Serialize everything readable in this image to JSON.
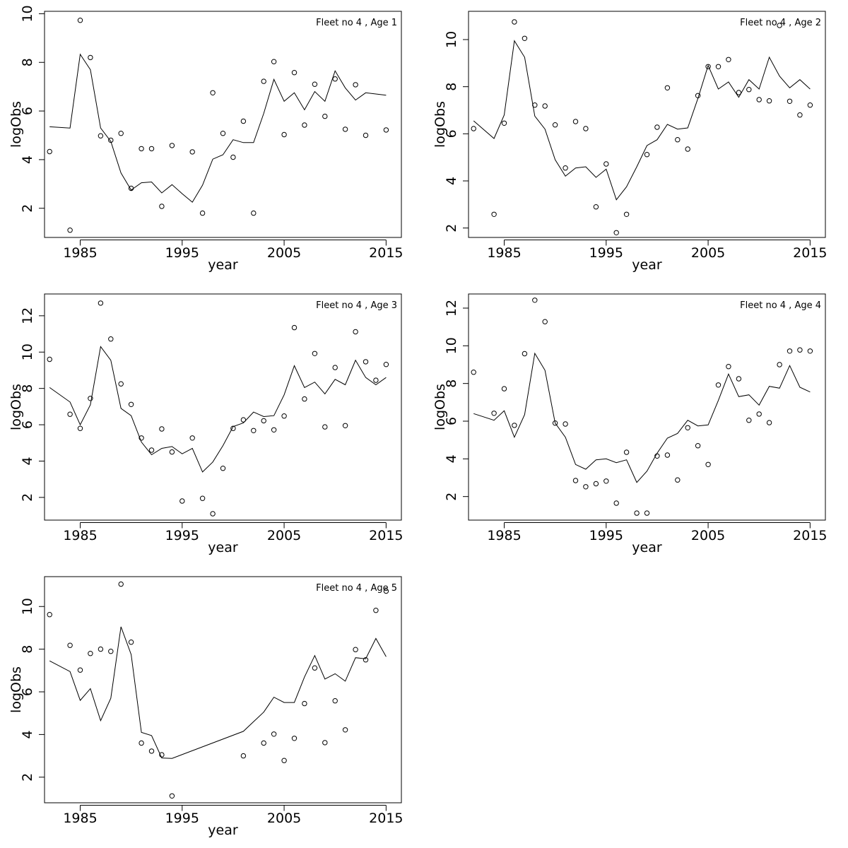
{
  "chart_data": [
    {
      "type": "line",
      "title": "Fleet no 4 , Age 1",
      "xlabel": "year",
      "ylabel": "logObs",
      "xlim": [
        1981.5,
        2016.5
      ],
      "ylim": [
        0.8,
        10.1
      ],
      "x_ticks": [
        1985,
        1995,
        2005,
        2015
      ],
      "y_ticks": [
        2,
        4,
        6,
        8,
        10
      ],
      "series": [
        {
          "type": "line",
          "x": [
            1982,
            1984,
            1985,
            1986,
            1987,
            1988,
            1989,
            1990,
            1991,
            1992,
            1993,
            1994,
            1995,
            1996,
            1997,
            1998,
            1999,
            2000,
            2001,
            2002,
            2003,
            2004,
            2005,
            2006,
            2007,
            2008,
            2009,
            2010,
            2011,
            2012,
            2013,
            2014,
            2015
          ],
          "y": [
            5.35,
            5.3,
            8.33,
            7.7,
            5.3,
            4.75,
            3.45,
            2.75,
            3.05,
            3.08,
            2.63,
            2.97,
            2.6,
            2.25,
            2.95,
            4.02,
            4.2,
            4.82,
            4.7,
            4.7,
            5.9,
            7.3,
            6.4,
            6.75,
            6.05,
            6.8,
            6.4,
            7.65,
            6.95,
            6.45,
            6.75,
            6.7,
            6.65
          ]
        },
        {
          "type": "scatter",
          "x": [
            1982,
            1984,
            1985,
            1986,
            1987,
            1988,
            1989,
            1990,
            1991,
            1992,
            1993,
            1994,
            1996,
            1997,
            1998,
            1999,
            2000,
            2001,
            2002,
            2003,
            2004,
            2005,
            2006,
            2007,
            2008,
            2009,
            2010,
            2011,
            2012,
            2013,
            2015
          ],
          "y": [
            4.33,
            1.1,
            9.73,
            8.2,
            4.98,
            4.8,
            5.08,
            2.82,
            4.45,
            4.45,
            2.08,
            4.58,
            4.32,
            1.8,
            6.75,
            5.08,
            4.1,
            5.58,
            1.8,
            7.22,
            8.03,
            5.03,
            7.58,
            5.42,
            7.1,
            5.78,
            7.32,
            5.25,
            7.08,
            5.0,
            5.22
          ]
        }
      ]
    },
    {
      "type": "line",
      "title": "Fleet no 4 , Age 2",
      "xlabel": "year",
      "ylabel": "logObs",
      "xlim": [
        1981.5,
        2016.5
      ],
      "ylim": [
        1.6,
        11.2
      ],
      "x_ticks": [
        1985,
        1995,
        2005,
        2015
      ],
      "y_ticks": [
        2,
        4,
        6,
        8,
        10
      ],
      "series": [
        {
          "type": "line",
          "x": [
            1982,
            1984,
            1985,
            1986,
            1987,
            1988,
            1989,
            1990,
            1991,
            1992,
            1993,
            1994,
            1995,
            1996,
            1997,
            1998,
            1999,
            2000,
            2001,
            2002,
            2003,
            2004,
            2005,
            2006,
            2007,
            2008,
            2009,
            2010,
            2011,
            2012,
            2013,
            2014,
            2015
          ],
          "y": [
            6.55,
            5.8,
            6.8,
            9.95,
            9.25,
            6.75,
            6.2,
            4.9,
            4.2,
            4.55,
            4.6,
            4.15,
            4.5,
            3.2,
            3.75,
            4.6,
            5.5,
            5.75,
            6.4,
            6.2,
            6.25,
            7.5,
            8.9,
            7.9,
            8.2,
            7.55,
            8.3,
            7.9,
            9.25,
            8.45,
            7.95,
            8.3,
            7.9
          ]
        },
        {
          "type": "scatter",
          "x": [
            1982,
            1984,
            1985,
            1986,
            1987,
            1988,
            1989,
            1990,
            1991,
            1992,
            1993,
            1994,
            1995,
            1996,
            1997,
            1999,
            2000,
            2001,
            2002,
            2003,
            2004,
            2005,
            2006,
            2007,
            2008,
            2009,
            2010,
            2011,
            2012,
            2013,
            2014,
            2015
          ],
          "y": [
            6.22,
            2.58,
            6.45,
            10.75,
            10.05,
            7.22,
            7.18,
            6.38,
            4.55,
            6.52,
            6.22,
            2.9,
            4.72,
            1.8,
            2.58,
            5.12,
            6.28,
            7.95,
            5.75,
            5.35,
            7.62,
            8.85,
            8.85,
            9.15,
            7.75,
            7.88,
            7.45,
            7.4,
            10.6,
            7.38,
            6.8,
            7.22
          ]
        }
      ]
    },
    {
      "type": "line",
      "title": "Fleet no 4 , Age 3",
      "xlabel": "year",
      "ylabel": "logObs",
      "xlim": [
        1981.5,
        2016.5
      ],
      "ylim": [
        0.75,
        13.2
      ],
      "x_ticks": [
        1985,
        1995,
        2005,
        2015
      ],
      "y_ticks": [
        2,
        4,
        6,
        8,
        10,
        12
      ],
      "series": [
        {
          "type": "line",
          "x": [
            1982,
            1984,
            1985,
            1986,
            1987,
            1988,
            1989,
            1990,
            1991,
            1992,
            1993,
            1994,
            1995,
            1996,
            1997,
            1998,
            1999,
            2000,
            2001,
            2002,
            2003,
            2004,
            2005,
            2006,
            2007,
            2008,
            2009,
            2010,
            2011,
            2012,
            2013,
            2014,
            2015
          ],
          "y": [
            8.05,
            7.25,
            6.0,
            7.1,
            10.3,
            9.55,
            6.9,
            6.5,
            5.05,
            4.35,
            4.7,
            4.8,
            4.4,
            4.7,
            3.4,
            3.95,
            4.85,
            5.9,
            6.1,
            6.7,
            6.45,
            6.5,
            7.65,
            9.25,
            8.05,
            8.35,
            7.7,
            8.5,
            8.2,
            9.55,
            8.6,
            8.2,
            8.6
          ]
        },
        {
          "type": "scatter",
          "x": [
            1982,
            1984,
            1985,
            1986,
            1987,
            1988,
            1989,
            1990,
            1991,
            1992,
            1993,
            1994,
            1995,
            1996,
            1997,
            1998,
            1999,
            2000,
            2001,
            2002,
            2003,
            2004,
            2005,
            2006,
            2007,
            2008,
            2009,
            2010,
            2011,
            2012,
            2013,
            2014,
            2015
          ],
          "y": [
            9.6,
            6.58,
            5.8,
            7.45,
            12.7,
            10.72,
            8.25,
            7.12,
            5.27,
            4.6,
            5.77,
            4.5,
            1.8,
            5.27,
            1.95,
            1.1,
            3.6,
            5.8,
            6.27,
            5.68,
            6.22,
            5.72,
            6.48,
            11.35,
            7.42,
            9.92,
            5.88,
            9.15,
            5.95,
            11.12,
            9.47,
            8.45,
            9.32
          ]
        }
      ]
    },
    {
      "type": "line",
      "title": "Fleet no 4 , Age 4",
      "xlabel": "year",
      "ylabel": "logObs",
      "xlim": [
        1981.5,
        2016.5
      ],
      "ylim": [
        0.75,
        12.75
      ],
      "x_ticks": [
        1985,
        1995,
        2005,
        2015
      ],
      "y_ticks": [
        2,
        4,
        6,
        8,
        10,
        12
      ],
      "series": [
        {
          "type": "line",
          "x": [
            1982,
            1984,
            1985,
            1986,
            1987,
            1988,
            1989,
            1990,
            1991,
            1992,
            1993,
            1994,
            1995,
            1996,
            1997,
            1998,
            1999,
            2000,
            2001,
            2002,
            2003,
            2004,
            2005,
            2006,
            2007,
            2008,
            2009,
            2010,
            2011,
            2012,
            2013,
            2014,
            2015
          ],
          "y": [
            6.4,
            6.05,
            6.55,
            5.15,
            6.35,
            9.6,
            8.7,
            5.9,
            5.15,
            3.7,
            3.45,
            3.95,
            4.0,
            3.8,
            3.95,
            2.75,
            3.35,
            4.3,
            5.1,
            5.35,
            6.05,
            5.75,
            5.8,
            7.1,
            8.5,
            7.3,
            7.4,
            6.85,
            7.85,
            7.75,
            8.95,
            7.8,
            7.55
          ]
        },
        {
          "type": "scatter",
          "x": [
            1982,
            1984,
            1985,
            1986,
            1987,
            1988,
            1989,
            1990,
            1991,
            1992,
            1993,
            1994,
            1995,
            1996,
            1997,
            1998,
            1999,
            2000,
            2001,
            2002,
            2003,
            2004,
            2005,
            2006,
            2007,
            2008,
            2009,
            2010,
            2011,
            2012,
            2013,
            2014,
            2015
          ],
          "y": [
            8.6,
            6.42,
            7.72,
            5.78,
            9.58,
            12.42,
            11.28,
            5.9,
            5.85,
            2.85,
            2.52,
            2.68,
            2.82,
            1.65,
            4.35,
            1.12,
            1.12,
            4.15,
            4.2,
            2.88,
            5.65,
            4.7,
            3.7,
            7.92,
            8.9,
            8.25,
            6.05,
            6.38,
            5.92,
            9.0,
            9.72,
            9.78,
            9.72
          ]
        }
      ]
    },
    {
      "type": "line",
      "title": "Fleet no 4 , Age 5",
      "xlabel": "year",
      "ylabel": "logObs",
      "xlim": [
        1981.5,
        2016.5
      ],
      "ylim": [
        0.8,
        11.4
      ],
      "x_ticks": [
        1985,
        1995,
        2005,
        2015
      ],
      "y_ticks": [
        2,
        4,
        6,
        8,
        10
      ],
      "series": [
        {
          "type": "line",
          "x": [
            1982,
            1984,
            1985,
            1986,
            1987,
            1988,
            1989,
            1990,
            1991,
            1992,
            1993,
            1994,
            2001,
            2002,
            2003,
            2004,
            2005,
            2006,
            2007,
            2008,
            2009,
            2010,
            2011,
            2012,
            2013,
            2014,
            2015
          ],
          "y": [
            7.45,
            6.95,
            5.6,
            6.15,
            4.65,
            5.7,
            9.05,
            7.75,
            4.1,
            3.95,
            2.9,
            2.88,
            4.15,
            4.6,
            5.05,
            5.75,
            5.5,
            5.5,
            6.7,
            7.7,
            6.6,
            6.85,
            6.5,
            7.6,
            7.55,
            8.5,
            7.65
          ]
        },
        {
          "type": "scatter",
          "x": [
            1982,
            1984,
            1985,
            1986,
            1987,
            1988,
            1989,
            1990,
            1991,
            1992,
            1993,
            1994,
            2001,
            2003,
            2004,
            2005,
            2006,
            2007,
            2008,
            2009,
            2010,
            2011,
            2012,
            2013,
            2014,
            2015
          ],
          "y": [
            9.62,
            8.18,
            7.02,
            7.8,
            8.0,
            7.9,
            11.05,
            8.33,
            3.6,
            3.22,
            3.05,
            1.12,
            3.0,
            3.6,
            4.02,
            2.78,
            3.82,
            5.45,
            7.12,
            3.62,
            5.58,
            4.22,
            7.98,
            7.5,
            9.82,
            10.72
          ]
        }
      ]
    }
  ]
}
